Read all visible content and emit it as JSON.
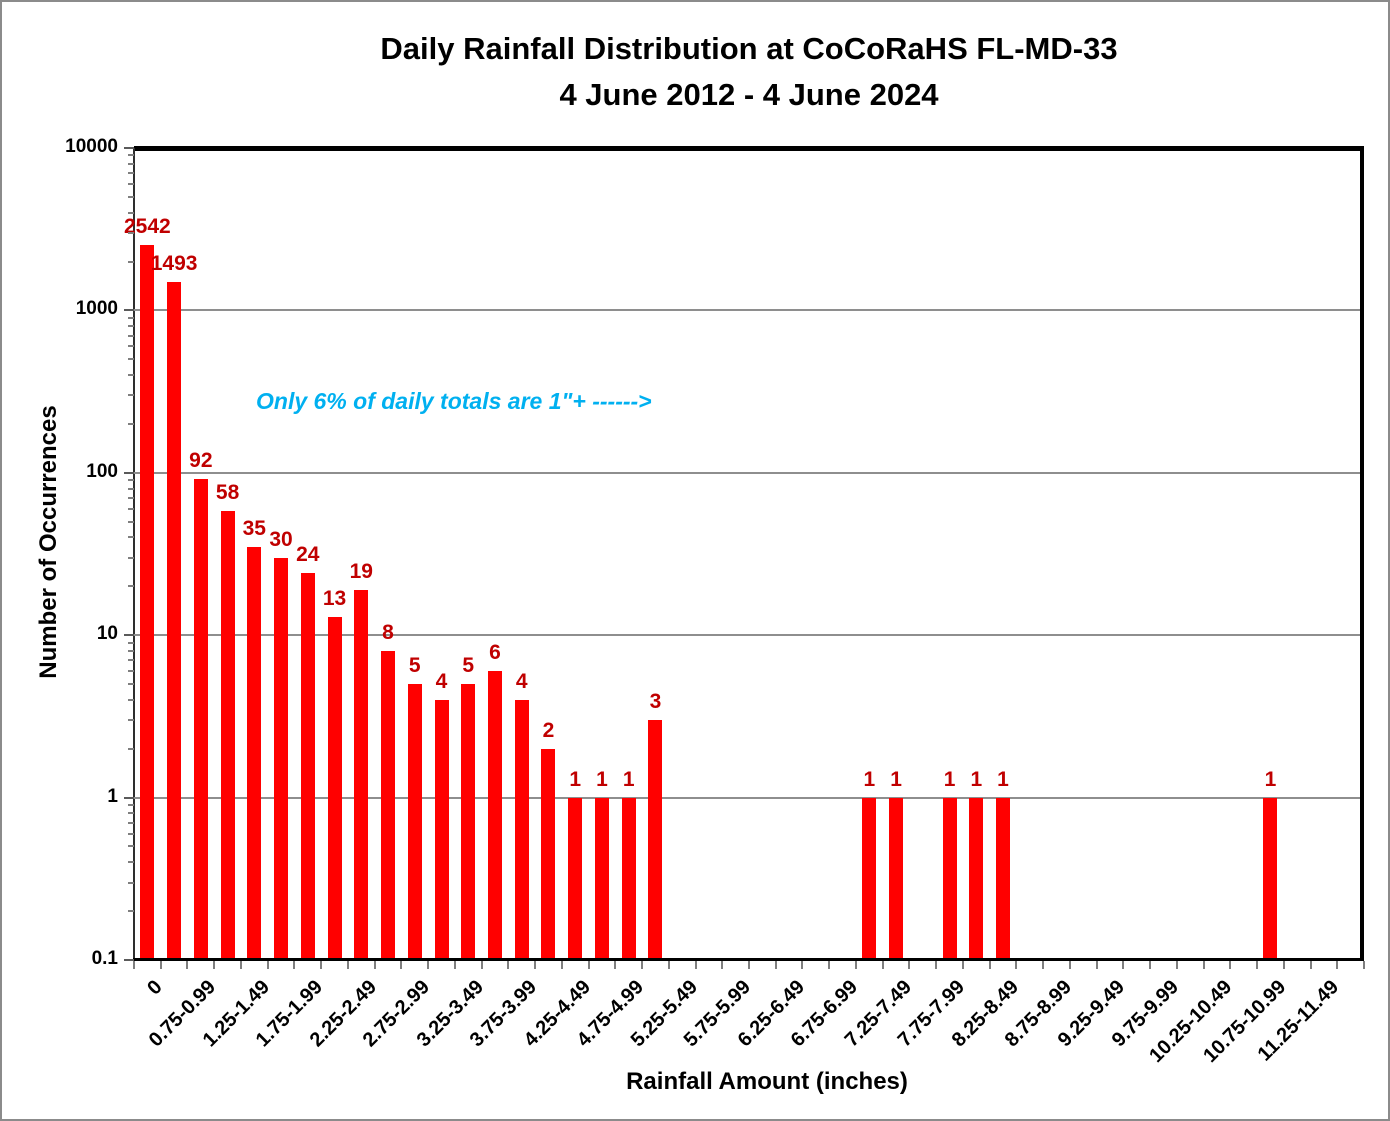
{
  "title": {
    "line1": "Daily Rainfall Distribution at CoCoRaHS FL-MD-33",
    "line2": "4 June 2012 - 4 June 2024"
  },
  "annotation": {
    "text": "Only 6% of daily totals are 1\"+  ------>",
    "color": "#00B0F0"
  },
  "chart_data": {
    "type": "bar",
    "title": "Daily Rainfall Distribution at CoCoRaHS FL-MD-33",
    "subtitle": "4 June 2012 - 4 June 2024",
    "xlabel": "Rainfall Amount (inches)",
    "ylabel": "Number of Occurrences",
    "y_axis": {
      "scale": "log",
      "min": 0.1,
      "max": 10000,
      "ticks": [
        "10000",
        "1000",
        "100",
        "10",
        "1",
        "0.1"
      ],
      "label": "Number of Occurrences"
    },
    "x_axis": {
      "label": "Rainfall Amount (inches)",
      "slots": 46,
      "visible_labels": [
        {
          "slot": 0,
          "text": "0"
        },
        {
          "slot": 2,
          "text": "0.75-0.99"
        },
        {
          "slot": 4,
          "text": "1.25-1.49"
        },
        {
          "slot": 6,
          "text": "1.75-1.99"
        },
        {
          "slot": 8,
          "text": "2.25-2.49"
        },
        {
          "slot": 10,
          "text": "2.75-2.99"
        },
        {
          "slot": 12,
          "text": "3.25-3.49"
        },
        {
          "slot": 14,
          "text": "3.75-3.99"
        },
        {
          "slot": 16,
          "text": "4.25-4.49"
        },
        {
          "slot": 18,
          "text": "4.75-4.99"
        },
        {
          "slot": 20,
          "text": "5.25-5.49"
        },
        {
          "slot": 22,
          "text": "5.75-5.99"
        },
        {
          "slot": 24,
          "text": "6.25-6.49"
        },
        {
          "slot": 26,
          "text": "6.75-6.99"
        },
        {
          "slot": 28,
          "text": "7.25-7.49"
        },
        {
          "slot": 30,
          "text": "7.75-7.99"
        },
        {
          "slot": 32,
          "text": "8.25-8.49"
        },
        {
          "slot": 34,
          "text": "8.75-8.99"
        },
        {
          "slot": 36,
          "text": "9.25-9.49"
        },
        {
          "slot": 38,
          "text": "9.75-9.99"
        },
        {
          "slot": 40,
          "text": "10.25-10.49"
        },
        {
          "slot": 42,
          "text": "10.75-10.99"
        },
        {
          "slot": 44,
          "text": "11.25-11.49"
        }
      ]
    },
    "bars": [
      {
        "slot": 0,
        "value": 2542
      },
      {
        "slot": 1,
        "value": 1493
      },
      {
        "slot": 2,
        "value": 92
      },
      {
        "slot": 3,
        "value": 58
      },
      {
        "slot": 4,
        "value": 35
      },
      {
        "slot": 5,
        "value": 30
      },
      {
        "slot": 6,
        "value": 24
      },
      {
        "slot": 7,
        "value": 13
      },
      {
        "slot": 8,
        "value": 19
      },
      {
        "slot": 9,
        "value": 8
      },
      {
        "slot": 10,
        "value": 5
      },
      {
        "slot": 11,
        "value": 4
      },
      {
        "slot": 12,
        "value": 5
      },
      {
        "slot": 13,
        "value": 6
      },
      {
        "slot": 14,
        "value": 4
      },
      {
        "slot": 15,
        "value": 2
      },
      {
        "slot": 16,
        "value": 1
      },
      {
        "slot": 17,
        "value": 1
      },
      {
        "slot": 18,
        "value": 1
      },
      {
        "slot": 19,
        "value": 3
      },
      {
        "slot": 27,
        "value": 1
      },
      {
        "slot": 28,
        "value": 1
      },
      {
        "slot": 30,
        "value": 1
      },
      {
        "slot": 31,
        "value": 1
      },
      {
        "slot": 32,
        "value": 1
      },
      {
        "slot": 42,
        "value": 1
      }
    ],
    "grid": "horizontal major gridlines",
    "legend": "none",
    "style": {
      "bar_color": "#FF0000",
      "value_label_color": "#C00000",
      "gridline_color": "#8e8e8e",
      "annotation_color": "#00B0F0"
    }
  }
}
